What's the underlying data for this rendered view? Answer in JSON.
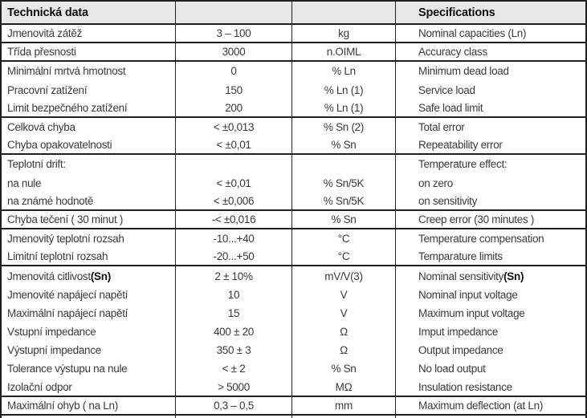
{
  "header": {
    "czech_title": "Technická data",
    "english_title": "Specifications"
  },
  "colors": {
    "border": "#1f1f1f",
    "header_bg": "#e8e8e8",
    "text": "#3a3a3a",
    "header_text": "#0f0f0f"
  },
  "table": {
    "rows": [
      {
        "cz": "Jmenovitá zátěž",
        "value": "3 – 100",
        "unit": "kg",
        "en": "Nominal capacities (Ln)",
        "divider": true
      },
      {
        "cz": "Třída přesnosti",
        "value": "3000",
        "unit": "n.OIML",
        "en": "Accuracy class",
        "divider": true
      },
      {
        "cz": "Minimální mrtvá hmotnost",
        "value": "0",
        "unit": "% Ln",
        "en": "Minimum dead load",
        "divider": false
      },
      {
        "cz": "Pracovní zatížení",
        "value": "150",
        "unit": "% Ln (1)",
        "en": "Service load",
        "divider": false
      },
      {
        "cz": "Limit bezpečného zatížení",
        "value": "200",
        "unit": "% Ln (1)",
        "en": "Safe load limit",
        "divider": true
      },
      {
        "cz": "Celková chyba",
        "value": "< ±0,013",
        "unit": "% Sn (2)",
        "en": "Total error",
        "divider": false
      },
      {
        "cz": "Chyba opakovatelnosti",
        "value": "< ±0,01",
        "unit": "% Sn",
        "en": "Repeatability error",
        "divider": true
      },
      {
        "cz": "Teplotní drift:",
        "value": "",
        "unit": "",
        "en": "Temperature effect:",
        "divider": false
      },
      {
        "cz": "na nule",
        "value": "< ±0,01",
        "unit": "% Sn/5K",
        "en": "on zero",
        "divider": false
      },
      {
        "cz": "na známé hodnotě",
        "value": "< ±0,006",
        "unit": "% Sn/5K",
        "en": "on sensitivity",
        "divider": true
      },
      {
        "cz": "Chyba tečení ( 30 minut )",
        "value": "-< ±0,016",
        "unit": "% Sn",
        "en": "Creep error (30 minutes )",
        "divider": true
      },
      {
        "cz": "Jmenovitý teplotní rozsah",
        "value": "-10...+40",
        "unit": "°C",
        "en": "Temperature compensation",
        "divider": false
      },
      {
        "cz": "Limitní teplotní rozsah",
        "value": "-20...+50",
        "unit": "°C",
        "en": "Temparature limits",
        "divider": true
      },
      {
        "cz": "Jmenovitá citlivost ",
        "cz_bold": "(Sn)",
        "value": "2 ± 10%",
        "unit": "mV/V(3)",
        "en": "Nominal sensitivity ",
        "en_bold": "(Sn)",
        "divider": false
      },
      {
        "cz": "Jmenovité napájecí napětí",
        "value": "10",
        "unit": "V",
        "en": "Nominal input voltage",
        "divider": false
      },
      {
        "cz": "Maximální napájecí napětí",
        "value": "15",
        "unit": "V",
        "en": "Maximum input voltage",
        "divider": false
      },
      {
        "cz": "Vstupní impedance",
        "value": "400 ± 20",
        "unit": "Ω",
        "en": "Imput impedance",
        "divider": false
      },
      {
        "cz": "Výstupní impedance",
        "value": "350 ± 3",
        "unit": "Ω",
        "en": "Output impedance",
        "divider": false
      },
      {
        "cz": "Tolerance výstupu na nule",
        "value": "< ± 2",
        "unit": "% Sn",
        "en": "No load output",
        "divider": false
      },
      {
        "cz": "Izolační odpor",
        "value": "> 5000",
        "unit": "MΩ",
        "en": "Insulation resistance",
        "divider": true
      },
      {
        "cz": "Maximální ohyb ( na Ln)",
        "value": "0,3 – 0,5",
        "unit": "mm",
        "en": "Maximum deflection (at Ln)",
        "divider": true
      }
    ]
  }
}
